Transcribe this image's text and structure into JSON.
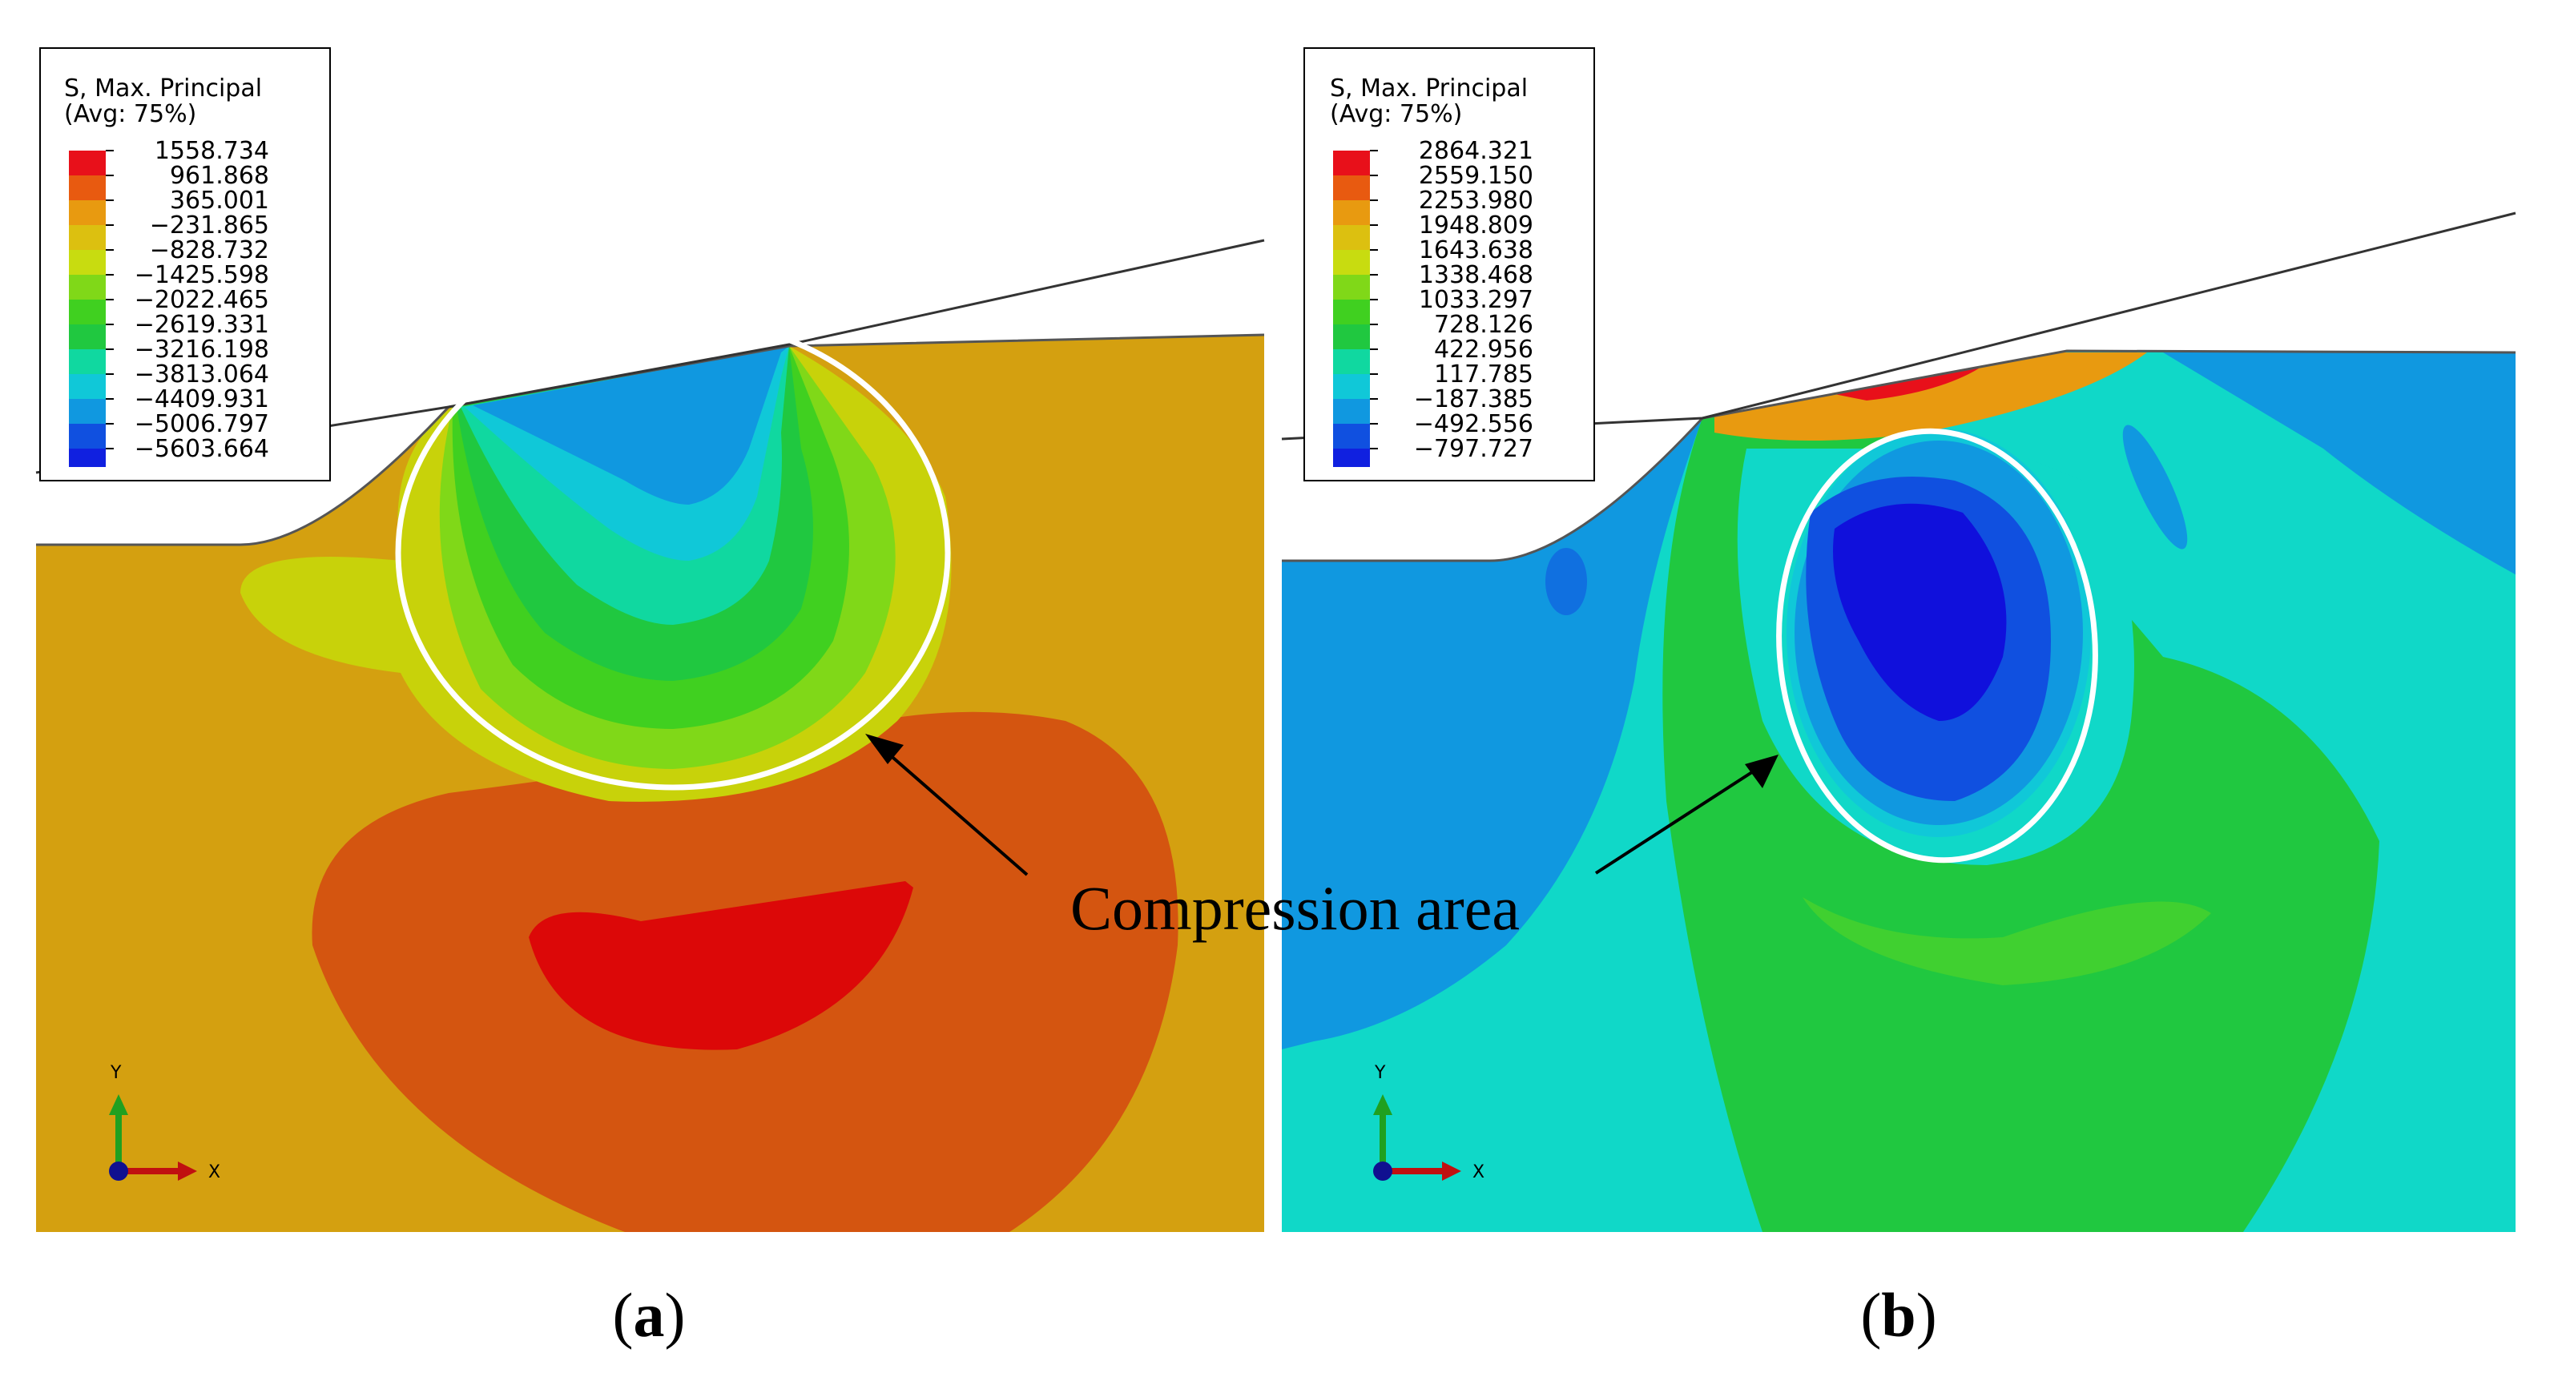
{
  "panels": [
    {
      "id": "a",
      "caption": "a",
      "legend": {
        "title_line1": "S, Max. Principal",
        "title_line2": "(Avg: 75%)",
        "values": [
          "1558.734",
          "961.868",
          "365.001",
          "−231.865",
          "−828.732",
          "−1425.598",
          "−2022.465",
          "−2619.331",
          "−3216.198",
          "−3813.064",
          "−4409.931",
          "−5006.797",
          "−5603.664"
        ],
        "colors": [
          "#e8101a",
          "#e85a10",
          "#e89a10",
          "#dcc010",
          "#c8dc10",
          "#80d818",
          "#40d020",
          "#20c840",
          "#10d8a0",
          "#10c8d8",
          "#1098e0",
          "#1050e0",
          "#1020e0"
        ]
      },
      "axes": {
        "y": "Y",
        "x": "X"
      }
    },
    {
      "id": "b",
      "caption": "b",
      "legend": {
        "title_line1": "S, Max. Principal",
        "title_line2": "(Avg: 75%)",
        "values": [
          "2864.321",
          "2559.150",
          "2253.980",
          "1948.809",
          "1643.638",
          "1338.468",
          "1033.297",
          "728.126",
          "422.956",
          "117.785",
          "−187.385",
          "−492.556",
          "−797.727"
        ],
        "colors": [
          "#e8101a",
          "#e85a10",
          "#e89a10",
          "#dcc010",
          "#c8dc10",
          "#80d818",
          "#40d020",
          "#20c840",
          "#10d8a0",
          "#10c8d8",
          "#1098e0",
          "#1050e0",
          "#1020e0"
        ]
      },
      "axes": {
        "y": "Y",
        "x": "X"
      }
    }
  ],
  "annotation": "Compression area",
  "colors": {
    "a_background": "#d4a010",
    "a_orange": "#d45510",
    "a_red": "#dc0808",
    "a_yellow": "#c8d20a",
    "b_background": "#10d8c8",
    "b_green": "#40d030",
    "b_blue": "#1098e0",
    "b_darkblue": "#1010dc"
  }
}
